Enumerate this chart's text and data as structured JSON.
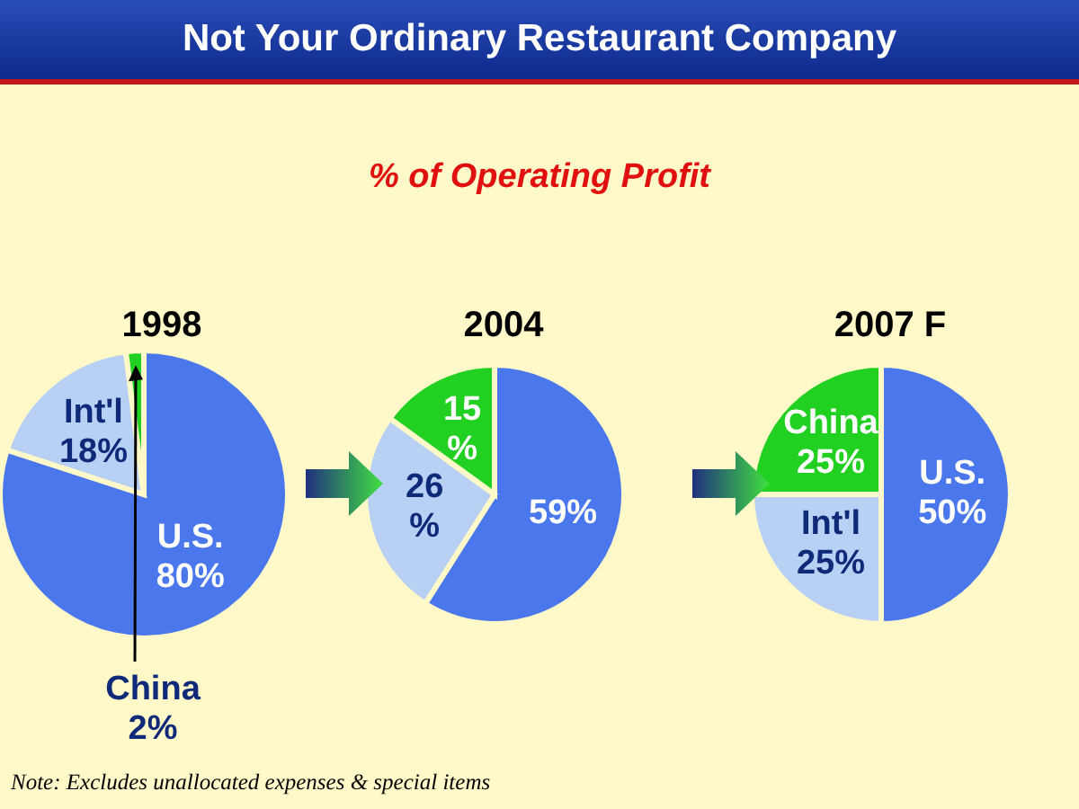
{
  "chart_data": [
    {
      "type": "other",
      "title": "Not Your Ordinary Restaurant Company",
      "subtitle": "% of Operating Profit",
      "annotations": [
        "Note:  Excludes unallocated expenses & special items"
      ]
    },
    {
      "type": "pie",
      "title": "1998",
      "categories": [
        "U.S.",
        "Int'l",
        "China"
      ],
      "values": [
        80,
        18,
        2
      ],
      "colors": [
        "#4a78ec",
        "#b8d0f4",
        "#22d022"
      ],
      "value_labels": [
        "80%",
        "18%",
        "2%"
      ]
    },
    {
      "type": "pie",
      "title": "2004",
      "categories": [
        null,
        null,
        null
      ],
      "values": [
        59,
        26,
        15
      ],
      "colors": [
        "#4a78ec",
        "#b8d0f4",
        "#22d022"
      ],
      "value_labels": [
        "59%",
        "26 %",
        "15 %"
      ]
    },
    {
      "type": "pie",
      "title": "2007 F",
      "categories": [
        "U.S.",
        "Int'l",
        "China"
      ],
      "values": [
        50,
        25,
        25
      ],
      "colors": [
        "#4a78ec",
        "#b8d0f4",
        "#22d022"
      ],
      "value_labels": [
        "50%",
        "25%",
        "25%"
      ]
    }
  ]
}
